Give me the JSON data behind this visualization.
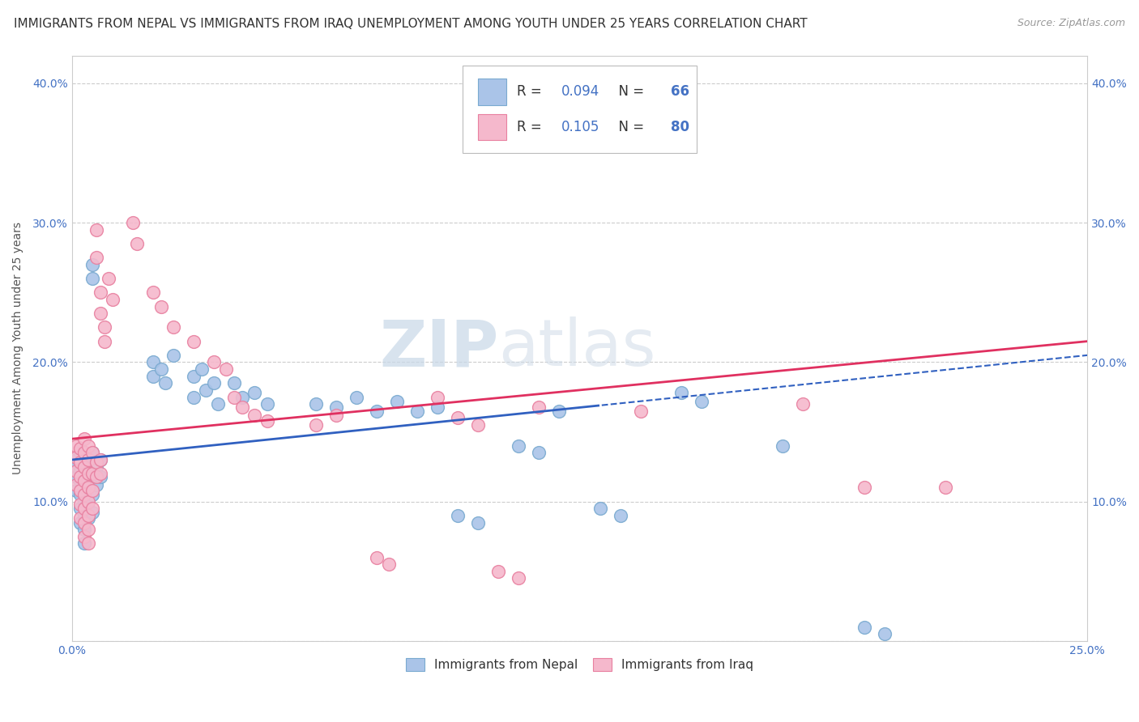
{
  "title": "IMMIGRANTS FROM NEPAL VS IMMIGRANTS FROM IRAQ UNEMPLOYMENT AMONG YOUTH UNDER 25 YEARS CORRELATION CHART",
  "source": "Source: ZipAtlas.com",
  "ylabel": "Unemployment Among Youth under 25 years",
  "xlim": [
    0.0,
    0.25
  ],
  "ylim": [
    0.0,
    0.42
  ],
  "xtick_vals": [
    0.0,
    0.05,
    0.1,
    0.15,
    0.2,
    0.25
  ],
  "xticklabels": [
    "0.0%",
    "",
    "",
    "",
    "",
    "25.0%"
  ],
  "ytick_vals": [
    0.0,
    0.1,
    0.2,
    0.3,
    0.4
  ],
  "yticklabels_left": [
    "",
    "10.0%",
    "20.0%",
    "30.0%",
    "40.0%"
  ],
  "yticklabels_right": [
    "",
    "10.0%",
    "20.0%",
    "30.0%",
    "40.0%"
  ],
  "nepal_color": "#aac4e8",
  "nepal_edge": "#7aaad0",
  "iraq_color": "#f5b8cc",
  "iraq_edge": "#e880a0",
  "nepal_line_color": "#3060c0",
  "iraq_line_color": "#e03060",
  "nepal_R": 0.094,
  "nepal_N": 66,
  "iraq_R": 0.105,
  "iraq_N": 80,
  "watermark_zip": "ZIP",
  "watermark_atlas": "atlas",
  "nepal_line_solid_end": 0.13,
  "iraq_line_end": 0.25,
  "nepal_line_start": 0.0,
  "nepal_line_end": 0.25,
  "title_fontsize": 11,
  "axis_label_fontsize": 10,
  "tick_fontsize": 10,
  "legend_fontsize": 12
}
